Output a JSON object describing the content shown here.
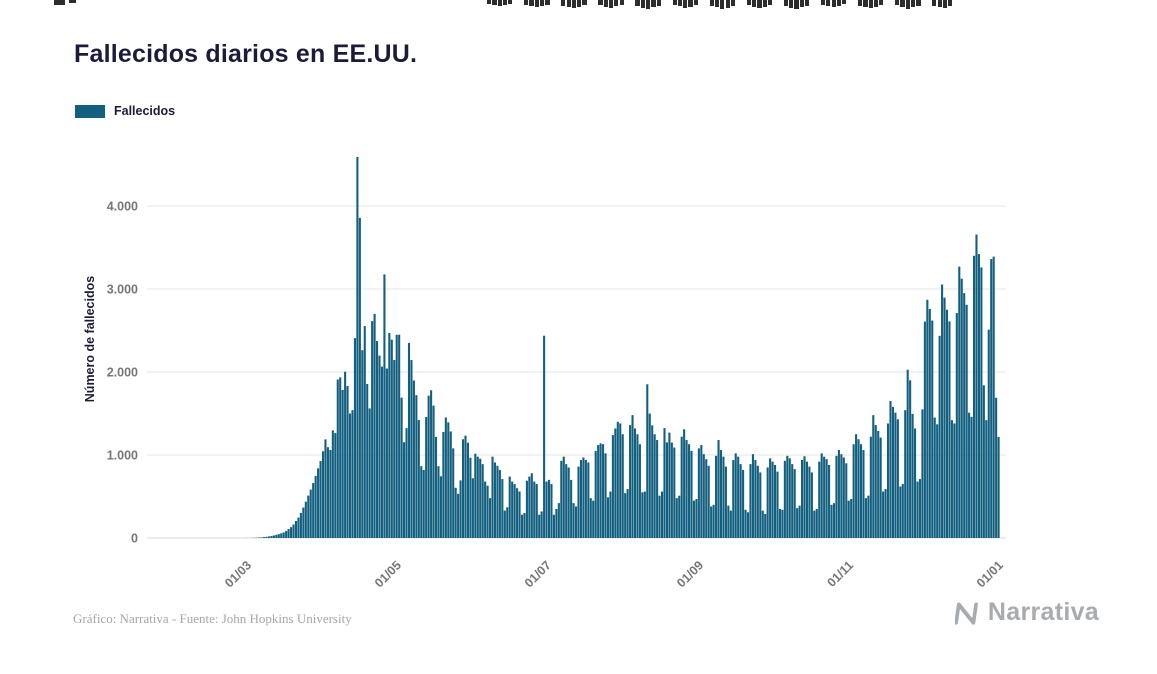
{
  "page": {
    "background": "#ffffff"
  },
  "top_strip": {
    "color": "#2d2d2d",
    "x": 487,
    "pitch": 5.3,
    "bar_width": 4.3,
    "heights": [
      4,
      5,
      6,
      5,
      4,
      0,
      0,
      5,
      6,
      7,
      6,
      5,
      0,
      0,
      6,
      7,
      8,
      7,
      5,
      0,
      0,
      5,
      7,
      8,
      6,
      5,
      0,
      0,
      6,
      8,
      9,
      7,
      6,
      0,
      0,
      5,
      6,
      8,
      7,
      5,
      0,
      0,
      6,
      7,
      9,
      8,
      6,
      0,
      0,
      5,
      7,
      8,
      7,
      5,
      0,
      0,
      6,
      8,
      9,
      7,
      6,
      0,
      0,
      5,
      6,
      7,
      6,
      4,
      0,
      0,
      6,
      7,
      8,
      7,
      5,
      0,
      0,
      5,
      7,
      9,
      7,
      6,
      0,
      0,
      6,
      7,
      8,
      6
    ],
    "left_marks": [
      {
        "x": 54,
        "w": 11,
        "h": 5
      },
      {
        "x": 69,
        "w": 7,
        "h": 3
      }
    ]
  },
  "header": {
    "title": "Fallecidos diarios en EE.UU."
  },
  "legend": {
    "label": "Fallecidos",
    "color": "#125f7f",
    "position": "top-left"
  },
  "chart_data": {
    "type": "bar",
    "title": "Fallecidos diarios en EE.UU.",
    "series_name": "Fallecidos",
    "xlabel": "",
    "ylabel": "Número de fallecidos",
    "ylim": [
      0,
      4600
    ],
    "yticks": [
      0,
      1000,
      2000,
      3000,
      4000
    ],
    "ytick_labels": [
      "0",
      "1.000",
      "2.000",
      "3.000",
      "4.000"
    ],
    "xtick_labels": [
      "01/03",
      "01/05",
      "01/07",
      "01/09",
      "01/11",
      "01/01"
    ],
    "xtick_indices": [
      39,
      100,
      161,
      223,
      284,
      345
    ],
    "grid": true,
    "bar_color": "#125f7f",
    "values": [
      0,
      0,
      0,
      0,
      0,
      0,
      0,
      0,
      0,
      0,
      0,
      0,
      0,
      0,
      0,
      0,
      0,
      0,
      0,
      0,
      0,
      0,
      0,
      0,
      0,
      0,
      0,
      0,
      0,
      0,
      0,
      0,
      0,
      0,
      0,
      0,
      0,
      0,
      0,
      1,
      1,
      2,
      3,
      4,
      6,
      7,
      11,
      15,
      19,
      24,
      31,
      39,
      47,
      56,
      67,
      85,
      108,
      131,
      163,
      205,
      246,
      302,
      367,
      438,
      511,
      583,
      662,
      748,
      839,
      927,
      1045,
      1188,
      1094,
      1061,
      1297,
      1264,
      1910,
      1935,
      1783,
      2003,
      1831,
      1500,
      1541,
      2408,
      4591,
      3857,
      2263,
      2553,
      1856,
      1561,
      2613,
      2700,
      2373,
      2198,
      2065,
      3176,
      2042,
      2470,
      2390,
      2144,
      2448,
      2449,
      1691,
      1154,
      1324,
      2350,
      2144,
      1898,
      1721,
      1422,
      865,
      820,
      1458,
      1715,
      1780,
      1595,
      1218,
      865,
      744,
      1278,
      1452,
      1394,
      1284,
      1080,
      605,
      532,
      694,
      1190,
      1233,
      1148,
      967,
      720,
      1015,
      980,
      955,
      890,
      680,
      630,
      480,
      980,
      910,
      870,
      820,
      710,
      330,
      370,
      740,
      680,
      650,
      600,
      560,
      280,
      300,
      690,
      740,
      780,
      680,
      650,
      280,
      320,
      2437,
      680,
      700,
      650,
      280,
      350,
      420,
      930,
      980,
      890,
      850,
      700,
      420,
      380,
      860,
      940,
      970,
      940,
      910,
      480,
      450,
      1050,
      1120,
      1140,
      1130,
      1020,
      490,
      560,
      1240,
      1320,
      1400,
      1380,
      1250,
      540,
      590,
      1360,
      1480,
      1320,
      1250,
      1130,
      550,
      560,
      1852,
      1499,
      1357,
      1250,
      1180,
      510,
      560,
      1324,
      1152,
      1270,
      1150,
      1090,
      480,
      510,
      1220,
      1310,
      1180,
      1130,
      1050,
      450,
      470,
      1080,
      1120,
      1010,
      950,
      870,
      380,
      400,
      990,
      1180,
      1060,
      980,
      860,
      390,
      330,
      940,
      1020,
      980,
      890,
      820,
      340,
      310,
      890,
      1010,
      940,
      870,
      790,
      330,
      290,
      850,
      960,
      920,
      880,
      800,
      350,
      340,
      930,
      990,
      960,
      890,
      830,
      360,
      390,
      940,
      985,
      920,
      860,
      790,
      330,
      350,
      920,
      1020,
      980,
      950,
      880,
      400,
      420,
      990,
      1060,
      1010,
      970,
      900,
      450,
      470,
      1130,
      1250,
      1190,
      1130,
      1060,
      480,
      510,
      1220,
      1480,
      1360,
      1290,
      1210,
      560,
      590,
      1380,
      1650,
      1580,
      1510,
      1430,
      620,
      650,
      1540,
      2028,
      1900,
      1495,
      1320,
      680,
      710,
      1550,
      2607,
      2870,
      2760,
      2620,
      1450,
      1370,
      2436,
      3054,
      2896,
      2750,
      2610,
      1420,
      1380,
      2710,
      3270,
      3124,
      2950,
      2810,
      1510,
      1460,
      3400,
      3656,
      3420,
      3260,
      1840,
      1420,
      2510,
      3360,
      3390,
      1690,
      1218
    ]
  },
  "footer": {
    "credit": "Gráfico: Narrativa - Fuente: John Hopkins University",
    "brand": "Narrativa"
  }
}
